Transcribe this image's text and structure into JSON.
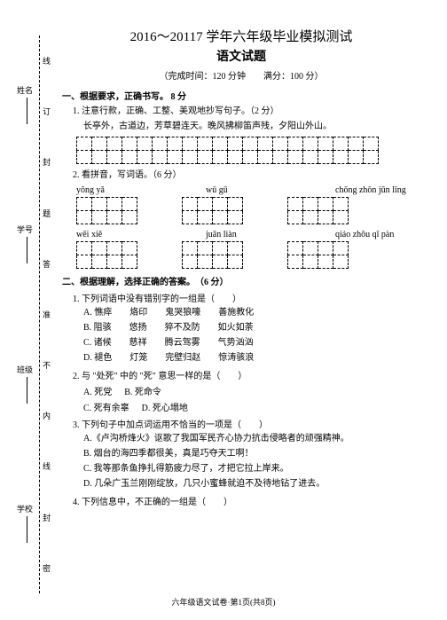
{
  "title_main": "2016～20117 学年六年级毕业模拟测试",
  "title_sub": "语文试题",
  "meta": "（完成时间：120 分钟　　满分：100 分）",
  "section1": {
    "heading": "一、根据要求，正确书写。 8 分",
    "q1": "1. 注意行款，正确、工整、美观地抄写句子。（2 分）",
    "q1_text": "长亭外，古道边，芳草碧连天。晚风拂柳笛声残，夕阳山外山。",
    "q2": "2. 看拼音，写词语。（6 分）",
    "pinyin_row1": [
      "yōng yǎ",
      "wǔ gū",
      "chōng zhōn jūn lǐng"
    ],
    "pinyin_row2": [
      "wēi xiě",
      "juān liàn",
      "qiáo zhōu qǐ pàn"
    ]
  },
  "section2": {
    "heading": "二、根据理解，选择正确的答案。　（6 分）",
    "q1": "1. 下列词语中没有错别字的一组是（　　）",
    "q1_choices": {
      "A": "A. 憔瘁　　烙印　　鬼哭狼嚎　　善施教化",
      "B": "B. 阻骇　　悠扬　　猝不及防　　如火如荼",
      "C": "C. 诸候　　慈祥　　腾云驾雾　　气势汹汹",
      "D": "D. 褪色　　灯笼　　完壁归赵　　惊涛骇浪"
    },
    "q2": "2. 与 \"处死\" 中的 \"死\" 意思一样的是（　　）",
    "q2_choices": {
      "A": "A. 死党",
      "B": "B. 死命令",
      "C": "C. 死有余辜",
      "D": "D. 死心塌地"
    },
    "q3": "3. 下列句子中加点词运用不恰当的一项是（　　）",
    "q3_choices": {
      "A": "A.《卢沟桥烽火》讴歌了我国军民齐心协力抗击侵略者的顽强精神。",
      "B": "B. 烟台的海四季都很美，真是巧夺天工啊！",
      "C": "C. 我等那条鱼挣扎得筋疲力尽了，才把它拉上岸来。",
      "D": "D. 几朵广玉兰刚刚绽放，几只小蜜蜂就迫不及待地钻了进去。"
    },
    "q4": "4. 下列信息中，不正确的一组是（　　）"
  },
  "footer": "六年级语文试卷·第1页(共8页)",
  "binding_outer": [
    "姓名",
    "学号",
    "班级",
    "学校"
  ],
  "binding_inner": [
    "线",
    "订",
    "封",
    "题",
    "答",
    "准",
    "不",
    "内",
    "线",
    "封",
    "密"
  ],
  "grid1": {
    "rows": 2,
    "cols": 20
  },
  "smallgrid": {
    "cols": 4
  }
}
